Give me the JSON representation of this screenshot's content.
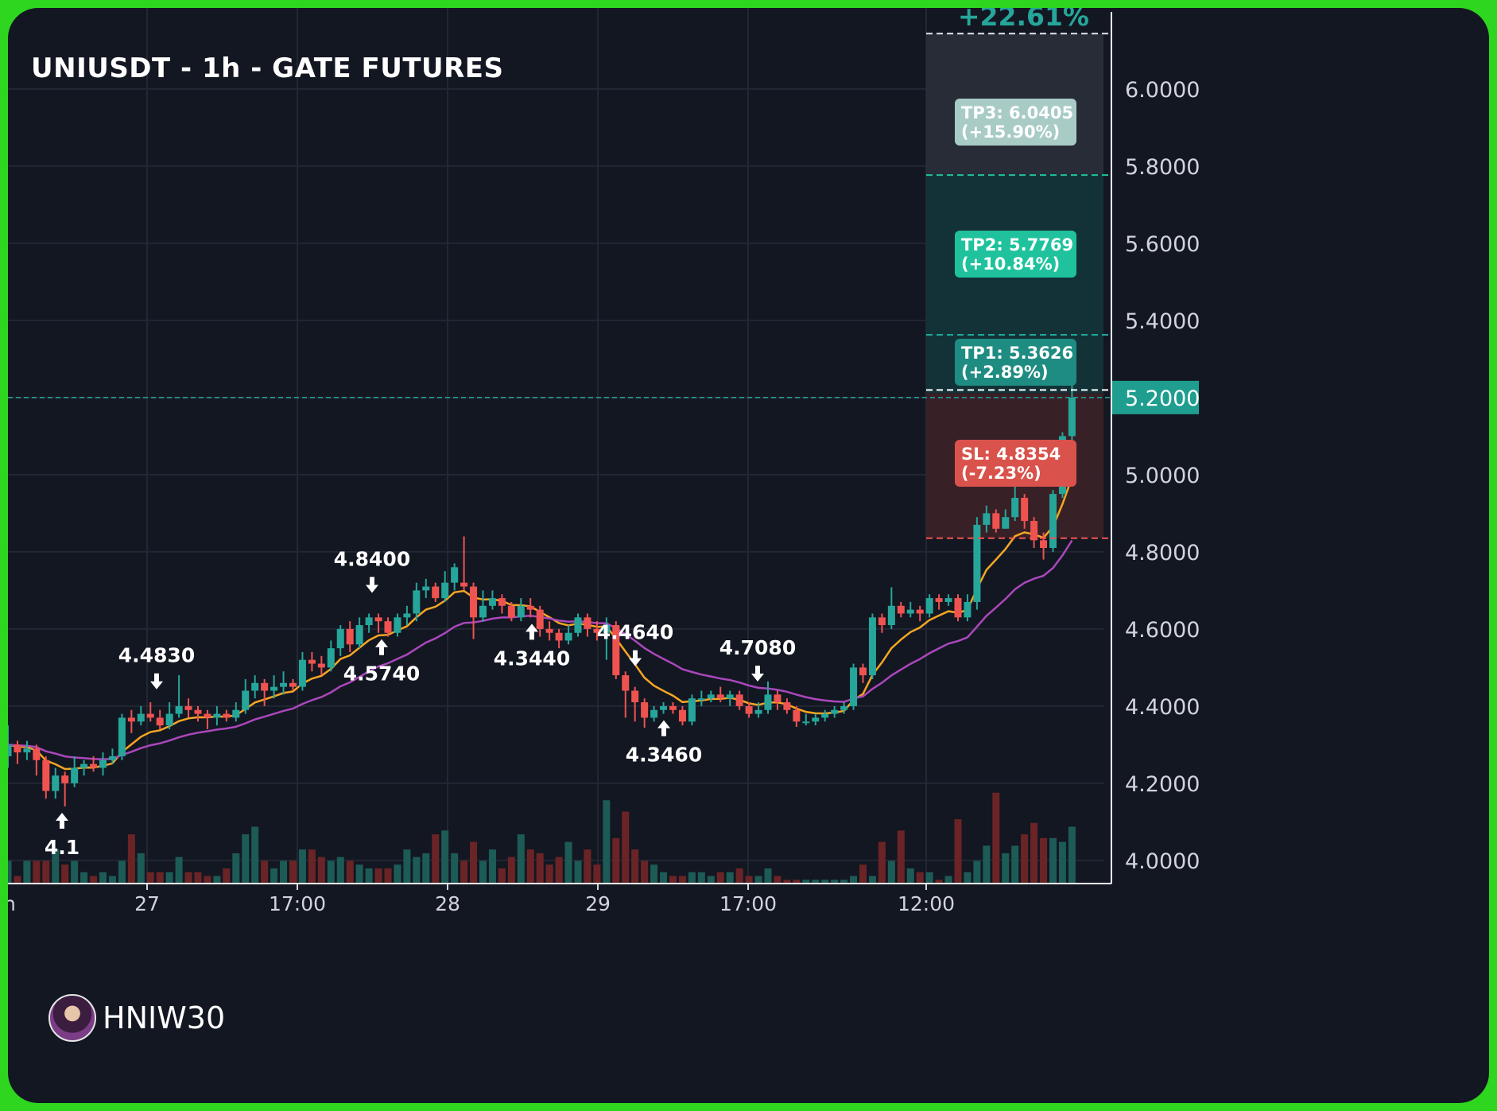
{
  "chart_data": {
    "type": "candlestick",
    "title": "UNIUSDT - 1h - GATE FUTURES",
    "symbol": "UNIUSDT",
    "interval": "1h",
    "exchange": "GATE FUTURES",
    "y_axis": {
      "ticks": [
        "6.0000",
        "5.8000",
        "5.6000",
        "5.4000",
        "5.2000",
        "5.0000",
        "4.8000",
        "4.6000",
        "4.4000",
        "4.2000",
        "4.0000"
      ],
      "range": [
        3.94,
        6.21
      ]
    },
    "x_axis": {
      "ticks": [
        "27",
        "17:00",
        "28",
        "29",
        "17:00",
        "12:00"
      ],
      "cut_off_first_tick": "n"
    },
    "candles": [
      [
        4.27,
        4.3,
        4.35,
        4.24
      ],
      [
        4.3,
        4.28,
        4.31,
        4.25
      ],
      [
        4.28,
        4.29,
        4.31,
        4.26
      ],
      [
        4.29,
        4.26,
        4.3,
        4.22
      ],
      [
        4.26,
        4.18,
        4.27,
        4.16
      ],
      [
        4.18,
        4.22,
        4.24,
        4.16
      ],
      [
        4.22,
        4.2,
        4.23,
        4.14
      ],
      [
        4.2,
        4.24,
        4.27,
        4.19
      ],
      [
        4.24,
        4.25,
        4.26,
        4.22
      ],
      [
        4.25,
        4.24,
        4.27,
        4.23
      ],
      [
        4.24,
        4.26,
        4.28,
        4.22
      ],
      [
        4.26,
        4.27,
        4.29,
        4.25
      ],
      [
        4.27,
        4.37,
        4.38,
        4.26
      ],
      [
        4.37,
        4.36,
        4.39,
        4.33
      ],
      [
        4.36,
        4.38,
        4.4,
        4.35
      ],
      [
        4.38,
        4.37,
        4.41,
        4.36
      ],
      [
        4.37,
        4.35,
        4.39,
        4.34
      ],
      [
        4.35,
        4.38,
        4.41,
        4.34
      ],
      [
        4.38,
        4.4,
        4.48,
        4.37
      ],
      [
        4.4,
        4.39,
        4.42,
        4.37
      ],
      [
        4.39,
        4.38,
        4.4,
        4.36
      ],
      [
        4.38,
        4.37,
        4.39,
        4.34
      ],
      [
        4.37,
        4.38,
        4.4,
        4.35
      ],
      [
        4.38,
        4.37,
        4.39,
        4.36
      ],
      [
        4.37,
        4.39,
        4.41,
        4.36
      ],
      [
        4.39,
        4.44,
        4.47,
        4.38
      ],
      [
        4.44,
        4.46,
        4.48,
        4.42
      ],
      [
        4.46,
        4.44,
        4.47,
        4.4
      ],
      [
        4.44,
        4.45,
        4.48,
        4.42
      ],
      [
        4.45,
        4.46,
        4.49,
        4.43
      ],
      [
        4.46,
        4.45,
        4.47,
        4.44
      ],
      [
        4.45,
        4.52,
        4.54,
        4.44
      ],
      [
        4.52,
        4.51,
        4.54,
        4.49
      ],
      [
        4.51,
        4.5,
        4.53,
        4.48
      ],
      [
        4.5,
        4.55,
        4.57,
        4.49
      ],
      [
        4.55,
        4.6,
        4.61,
        4.53
      ],
      [
        4.6,
        4.56,
        4.62,
        4.54
      ],
      [
        4.56,
        4.61,
        4.63,
        4.55
      ],
      [
        4.61,
        4.63,
        4.64,
        4.59
      ],
      [
        4.63,
        4.62,
        4.64,
        4.59
      ],
      [
        4.62,
        4.59,
        4.63,
        4.58
      ],
      [
        4.59,
        4.63,
        4.64,
        4.58
      ],
      [
        4.63,
        4.64,
        4.66,
        4.61
      ],
      [
        4.64,
        4.7,
        4.72,
        4.62
      ],
      [
        4.7,
        4.71,
        4.73,
        4.68
      ],
      [
        4.71,
        4.68,
        4.72,
        4.67
      ],
      [
        4.68,
        4.72,
        4.75,
        4.67
      ],
      [
        4.72,
        4.76,
        4.77,
        4.7
      ],
      [
        4.72,
        4.71,
        4.84,
        4.7
      ],
      [
        4.71,
        4.63,
        4.72,
        4.574
      ],
      [
        4.63,
        4.66,
        4.7,
        4.62
      ],
      [
        4.66,
        4.68,
        4.7,
        4.65
      ],
      [
        4.68,
        4.66,
        4.69,
        4.64
      ],
      [
        4.66,
        4.63,
        4.67,
        4.62
      ],
      [
        4.63,
        4.66,
        4.68,
        4.62
      ],
      [
        4.66,
        4.65,
        4.68,
        4.63
      ],
      [
        4.65,
        4.6,
        4.66,
        4.58
      ],
      [
        4.6,
        4.59,
        4.62,
        4.57
      ],
      [
        4.59,
        4.57,
        4.6,
        4.55
      ],
      [
        4.57,
        4.59,
        4.61,
        4.56
      ],
      [
        4.59,
        4.63,
        4.64,
        4.58
      ],
      [
        4.63,
        4.6,
        4.64,
        4.58
      ],
      [
        4.6,
        4.59,
        4.62,
        4.57
      ],
      [
        4.59,
        4.61,
        4.63,
        4.52
      ],
      [
        4.61,
        4.48,
        4.62,
        4.47
      ],
      [
        4.48,
        4.44,
        4.49,
        4.37
      ],
      [
        4.44,
        4.41,
        4.45,
        4.36
      ],
      [
        4.41,
        4.37,
        4.42,
        4.344
      ],
      [
        4.37,
        4.39,
        4.4,
        4.36
      ],
      [
        4.39,
        4.4,
        4.41,
        4.38
      ],
      [
        4.4,
        4.39,
        4.41,
        4.38
      ],
      [
        4.39,
        4.36,
        4.4,
        4.35
      ],
      [
        4.36,
        4.42,
        4.43,
        4.35
      ],
      [
        4.42,
        4.42,
        4.44,
        4.4
      ],
      [
        4.42,
        4.43,
        4.44,
        4.41
      ],
      [
        4.43,
        4.42,
        4.45,
        4.41
      ],
      [
        4.42,
        4.43,
        4.44,
        4.4
      ],
      [
        4.43,
        4.4,
        4.44,
        4.39
      ],
      [
        4.4,
        4.38,
        4.41,
        4.37
      ],
      [
        4.38,
        4.39,
        4.41,
        4.37
      ],
      [
        4.39,
        4.43,
        4.464,
        4.38
      ],
      [
        4.43,
        4.41,
        4.44,
        4.39
      ],
      [
        4.41,
        4.39,
        4.42,
        4.38
      ],
      [
        4.39,
        4.36,
        4.4,
        4.346
      ],
      [
        4.36,
        4.36,
        4.38,
        4.35
      ],
      [
        4.36,
        4.37,
        4.38,
        4.35
      ],
      [
        4.37,
        4.38,
        4.39,
        4.36
      ],
      [
        4.38,
        4.39,
        4.4,
        4.37
      ],
      [
        4.39,
        4.4,
        4.41,
        4.38
      ],
      [
        4.4,
        4.5,
        4.51,
        4.39
      ],
      [
        4.5,
        4.48,
        4.51,
        4.46
      ],
      [
        4.48,
        4.63,
        4.64,
        4.47
      ],
      [
        4.63,
        4.61,
        4.64,
        4.59
      ],
      [
        4.61,
        4.66,
        4.708,
        4.6
      ],
      [
        4.66,
        4.64,
        4.67,
        4.63
      ],
      [
        4.64,
        4.65,
        4.67,
        4.63
      ],
      [
        4.65,
        4.64,
        4.66,
        4.62
      ],
      [
        4.64,
        4.68,
        4.69,
        4.63
      ],
      [
        4.68,
        4.67,
        4.69,
        4.65
      ],
      [
        4.67,
        4.68,
        4.69,
        4.66
      ],
      [
        4.68,
        4.63,
        4.69,
        4.62
      ],
      [
        4.63,
        4.67,
        4.69,
        4.62
      ],
      [
        4.67,
        4.87,
        4.89,
        4.65
      ],
      [
        4.87,
        4.9,
        4.92,
        4.85
      ],
      [
        4.9,
        4.86,
        4.91,
        4.85
      ],
      [
        4.86,
        4.89,
        4.91,
        4.86
      ],
      [
        4.89,
        4.94,
        4.97,
        4.88
      ],
      [
        4.94,
        4.88,
        4.95,
        4.86
      ],
      [
        4.88,
        4.83,
        4.89,
        4.81
      ],
      [
        4.83,
        4.81,
        4.85,
        4.78
      ],
      [
        4.81,
        4.95,
        4.96,
        4.8
      ],
      [
        4.95,
        5.1,
        5.11,
        4.94
      ],
      [
        5.1,
        5.2,
        5.25,
        5.09
      ]
    ],
    "volume_scale": "relative",
    "volumes": [
      6,
      2,
      6,
      6,
      6,
      9,
      5,
      6,
      3,
      2,
      3,
      2,
      6,
      13,
      8,
      3,
      3,
      3,
      7,
      3,
      3,
      2,
      2,
      4,
      8,
      13,
      15,
      6,
      4,
      6,
      6,
      9,
      9,
      7,
      6,
      7,
      6,
      5,
      4,
      4,
      4,
      5,
      9,
      7,
      8,
      13,
      14,
      8,
      6,
      11,
      6,
      9,
      4,
      7,
      13,
      9,
      8,
      5,
      7,
      11,
      6,
      9,
      5,
      22,
      12,
      19,
      9,
      6,
      5,
      3,
      2,
      2,
      3,
      3,
      2,
      3,
      3,
      4,
      2,
      2,
      4,
      2,
      1,
      1,
      1,
      1,
      1,
      1,
      1,
      2,
      5,
      2,
      11,
      6,
      14,
      4,
      3,
      3,
      1,
      2,
      17,
      3,
      6,
      10,
      24,
      8,
      10,
      13,
      16,
      12,
      12,
      11,
      15,
      42,
      27
    ],
    "moving_averages": [
      {
        "color": "#f5a623"
      },
      {
        "color": "#ab47bc"
      }
    ],
    "pivot_labels": [
      {
        "value": "4.4830",
        "type": "high"
      },
      {
        "value": "4.8400",
        "type": "high"
      },
      {
        "value": "4.5740",
        "type": "low"
      },
      {
        "value": "4.3440",
        "type": "low"
      },
      {
        "value": "4.4640",
        "type": "high"
      },
      {
        "value": "4.3460",
        "type": "low"
      },
      {
        "value": "4.7080",
        "type": "high"
      },
      {
        "value": "4.1",
        "type": "low"
      }
    ],
    "current_price": {
      "label": "5.2000",
      "value": 5.2
    },
    "trade_levels": {
      "max_target": {
        "label": "+22.61%",
        "value": 6.0405
      },
      "tp3": {
        "label": "TP3: 6.0405",
        "pct": "(+15.90%)",
        "value": 6.0405
      },
      "tp2": {
        "label": "TP2: 5.7769",
        "pct": "(+10.84%)",
        "value": 5.7769
      },
      "tp1": {
        "label": "TP1: 5.3626",
        "pct": "(+2.89%)",
        "value": 5.3626
      },
      "entry": {
        "value": 5.2114
      },
      "sl": {
        "label": "SL: 4.8354",
        "pct": "(-7.23%)",
        "value": 4.8354
      }
    },
    "colors": {
      "up": "#26a69a",
      "down": "#ef5350",
      "background": "#131722",
      "grid": "#232733",
      "text": "#d1d4dc",
      "tp3_box": "#a8cbc6",
      "tp2_box": "#1fc29c",
      "tp1_box": "#1f8c82",
      "sl_box": "#d9524b",
      "frame": "#2ed61f"
    }
  },
  "watermark": {
    "handle": "HNIW30"
  }
}
